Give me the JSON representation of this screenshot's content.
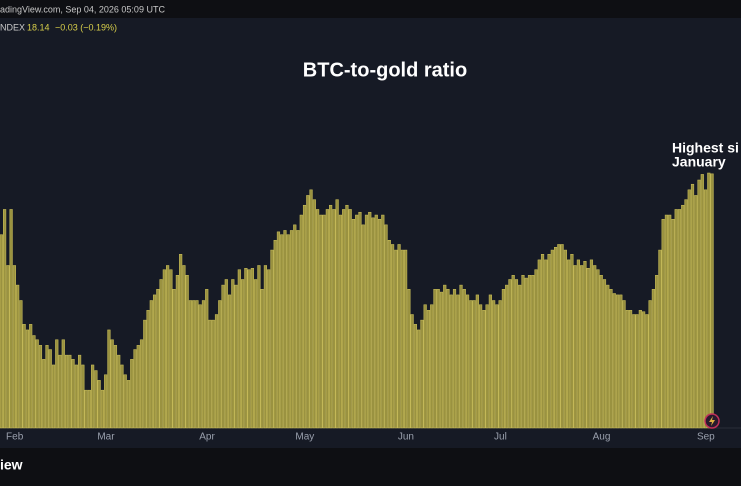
{
  "chart_data": {
    "type": "bar",
    "header": {
      "source": "adingView.com, Sep 04, 2026 05:09 UTC",
      "symbol": "NDEX",
      "price": "18.14",
      "change": "−0.03 (−0.19%)"
    },
    "title": "BTC-to-gold ratio",
    "annotation": [
      "Highest si",
      "January"
    ],
    "brand": "iew",
    "color": "#9a9240",
    "categories": [
      null,
      null,
      null,
      null,
      "Feb",
      null,
      null,
      null,
      null,
      null,
      null,
      null,
      null,
      null,
      null,
      null,
      null,
      null,
      null,
      null,
      null,
      null,
      null,
      null,
      null,
      null,
      null,
      null,
      null,
      null,
      null,
      null,
      "Mar",
      null,
      null,
      null,
      null,
      null,
      null,
      null,
      null,
      null,
      null,
      null,
      null,
      null,
      null,
      null,
      null,
      null,
      null,
      null,
      null,
      null,
      null,
      null,
      null,
      null,
      null,
      null,
      null,
      null,
      null,
      "Apr",
      null,
      null,
      null,
      null,
      null,
      null,
      null,
      null,
      null,
      null,
      null,
      null,
      null,
      null,
      null,
      null,
      null,
      null,
      null,
      null,
      null,
      null,
      null,
      null,
      null,
      null,
      null,
      null,
      null,
      "May",
      null,
      null,
      null,
      null,
      null,
      null,
      null,
      null,
      null,
      null,
      null,
      null,
      null,
      null,
      null,
      null,
      null,
      null,
      null,
      null,
      null,
      null,
      null,
      null,
      null,
      null,
      null,
      null,
      null,
      null,
      "Jun",
      null,
      null,
      null,
      null,
      null,
      null,
      null,
      null,
      null,
      null,
      null,
      null,
      null,
      null,
      null,
      null,
      null,
      null,
      null,
      null,
      null,
      null,
      null,
      null,
      null,
      null,
      null,
      null,
      "Jul",
      null,
      null,
      null,
      null,
      null,
      null,
      null,
      null,
      null,
      null,
      null,
      null,
      null,
      null,
      null,
      null,
      null,
      null,
      null,
      null,
      null,
      null,
      null,
      null,
      null,
      null,
      null,
      null,
      null,
      null,
      "Aug",
      null,
      null,
      null,
      null,
      null,
      null,
      null,
      null,
      null,
      null,
      null,
      null,
      null,
      null,
      null,
      null,
      null,
      null,
      null,
      null,
      null,
      null,
      null,
      null,
      null,
      null,
      null,
      null,
      null,
      null,
      null,
      "Sep",
      null,
      null
    ],
    "values": [
      13.8,
      15.6,
      11.6,
      15.6,
      11.6,
      10.2,
      9.1,
      7.4,
      7.0,
      7.4,
      6.6,
      6.3,
      5.9,
      4.9,
      5.9,
      5.6,
      4.5,
      6.3,
      5.2,
      6.3,
      5.2,
      5.2,
      4.9,
      4.5,
      5.2,
      4.5,
      2.7,
      2.7,
      4.5,
      4.1,
      3.4,
      2.7,
      3.8,
      7.0,
      6.3,
      5.9,
      5.2,
      4.5,
      3.8,
      3.4,
      4.9,
      5.6,
      5.9,
      6.3,
      7.7,
      8.4,
      9.1,
      9.5,
      9.9,
      10.6,
      11.3,
      11.6,
      11.3,
      9.9,
      10.9,
      12.4,
      11.6,
      10.9,
      9.1,
      9.1,
      9.1,
      8.8,
      9.1,
      9.9,
      7.7,
      7.7,
      8.1,
      9.1,
      10.2,
      10.6,
      9.5,
      10.6,
      10.2,
      11.3,
      10.6,
      11.4,
      11.3,
      11.4,
      10.6,
      11.6,
      9.9,
      11.6,
      11.3,
      12.7,
      13.4,
      14.0,
      13.8,
      14.1,
      13.8,
      14.1,
      14.5,
      14.1,
      15.2,
      15.9,
      16.6,
      17.0,
      16.3,
      15.6,
      15.2,
      15.2,
      15.6,
      15.9,
      15.6,
      16.3,
      15.2,
      15.6,
      15.9,
      15.6,
      14.9,
      15.2,
      15.4,
      14.5,
      15.2,
      15.4,
      15.0,
      15.2,
      14.9,
      15.2,
      14.5,
      13.4,
      13.1,
      12.7,
      13.1,
      12.7,
      12.7,
      9.9,
      8.1,
      7.4,
      7.0,
      7.7,
      8.8,
      8.4,
      8.8,
      9.9,
      9.9,
      9.7,
      10.2,
      9.9,
      9.5,
      9.9,
      9.5,
      10.2,
      9.9,
      9.5,
      9.1,
      9.1,
      9.5,
      8.8,
      8.4,
      8.8,
      9.5,
      9.1,
      8.8,
      9.1,
      9.9,
      10.2,
      10.6,
      10.9,
      10.6,
      10.2,
      10.9,
      10.7,
      10.9,
      10.9,
      11.3,
      12.0,
      12.4,
      12.0,
      12.4,
      12.7,
      12.9,
      13.1,
      13.1,
      12.7,
      12.0,
      12.4,
      11.6,
      12.0,
      11.6,
      11.9,
      11.4,
      12.0,
      11.6,
      11.3,
      10.9,
      10.6,
      10.2,
      9.9,
      9.6,
      9.5,
      9.5,
      9.1,
      8.4,
      8.4,
      8.1,
      8.1,
      8.4,
      8.3,
      8.1,
      9.1,
      9.9,
      10.9,
      12.7,
      14.9,
      15.2,
      15.2,
      14.9,
      15.6,
      15.6,
      15.9,
      16.3,
      17.0,
      17.4,
      16.6,
      17.7,
      18.1,
      17.0,
      18.2,
      18.14
    ]
  }
}
